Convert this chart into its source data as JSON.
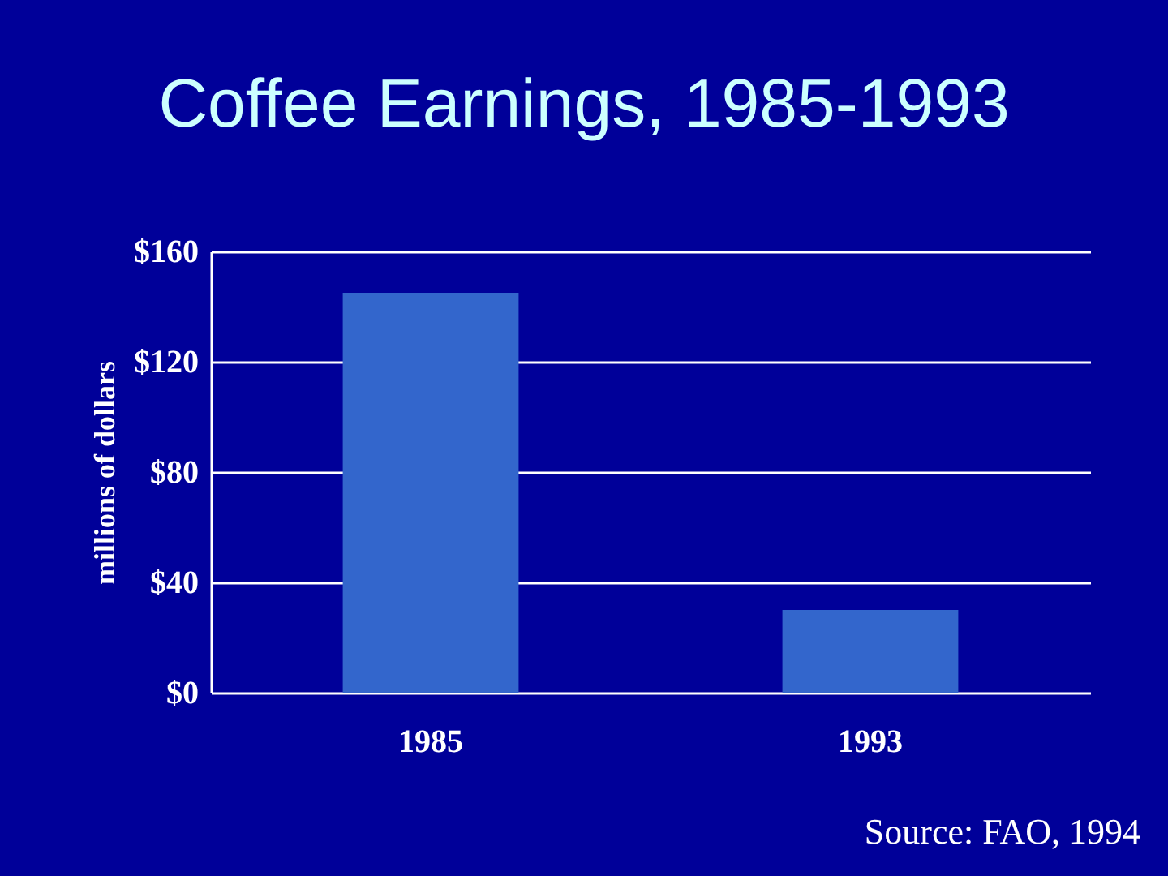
{
  "chart_data": {
    "type": "bar",
    "title": "Coffee Earnings, 1985-1993",
    "ylabel": "millions of dollars",
    "categories": [
      "1985",
      "1993"
    ],
    "values": [
      145,
      30
    ],
    "color": "#3366cc",
    "ylim": [
      0,
      160
    ],
    "yticks": [
      {
        "value": 0,
        "label": "$0"
      },
      {
        "value": 40,
        "label": "$40"
      },
      {
        "value": 80,
        "label": "$80"
      },
      {
        "value": 120,
        "label": "$120"
      },
      {
        "value": 160,
        "label": "$160"
      }
    ],
    "grid": "y",
    "annotations": [
      "Source: FAO, 1994"
    ]
  }
}
